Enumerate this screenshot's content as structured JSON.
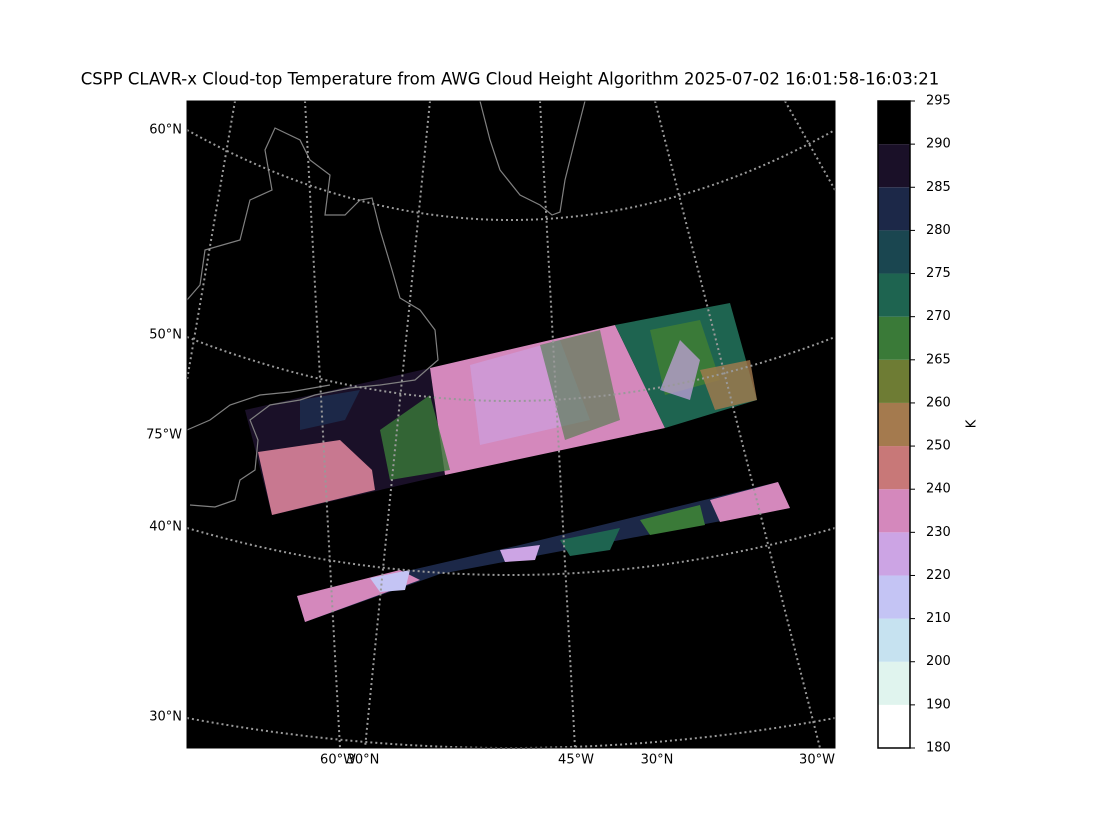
{
  "title": "CSPP CLAVR-x Cloud-top Temperature from AWG Cloud Height Algorithm 2025-07-02 16:01:58-16:03:21",
  "map": {
    "lat_lon_labels": [
      "60°N",
      "50°N",
      "75°W",
      "40°N",
      "30°N",
      "60°W",
      "30°N",
      "45°W",
      "30°N",
      "30°W"
    ]
  },
  "colorbar": {
    "label": "K",
    "boundaries": [
      180,
      190,
      200,
      210,
      220,
      230,
      240,
      250,
      260,
      265,
      270,
      275,
      280,
      285,
      290,
      295
    ],
    "colors": [
      "#ffffff",
      "#e0f4ee",
      "#c6e2f0",
      "#c4c4f4",
      "#cca4e4",
      "#d488bc",
      "#c87878",
      "#a47a4e",
      "#6e7c34",
      "#3a7a38",
      "#1e6450",
      "#1a4650",
      "#1c2848",
      "#1a1028",
      "#000000"
    ]
  }
}
